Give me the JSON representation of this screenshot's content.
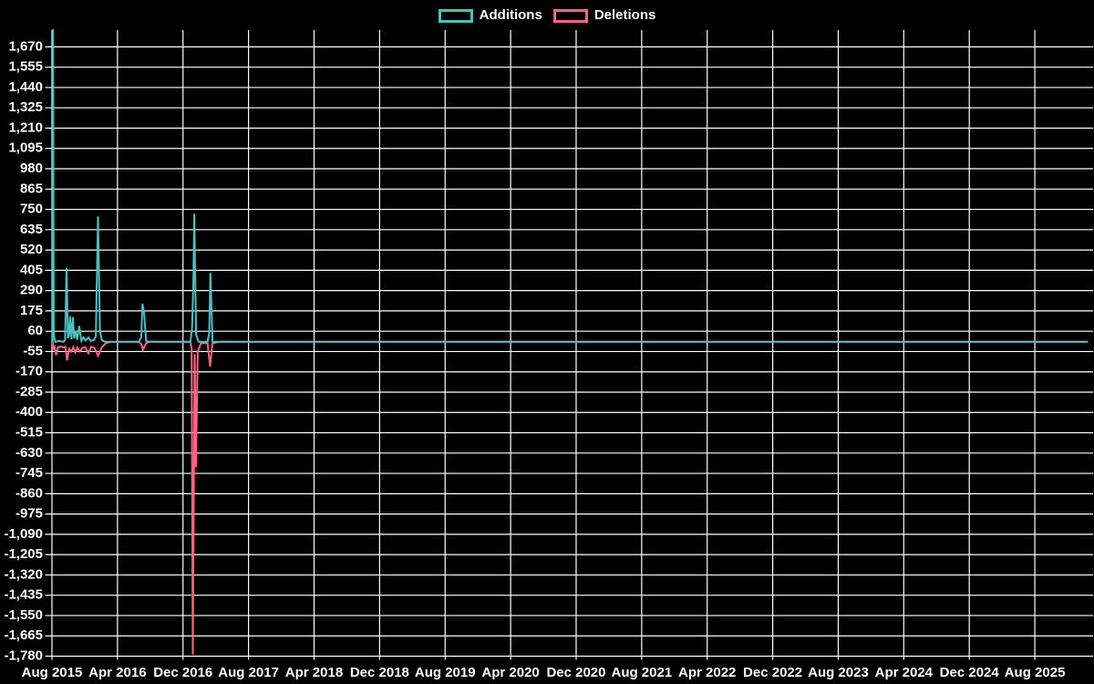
{
  "page": {
    "background": "#000000"
  },
  "legend": {
    "position": "top-center",
    "items": [
      {
        "label": "Additions",
        "color": "#4bc0c0"
      },
      {
        "label": "Deletions",
        "color": "#ff6384"
      }
    ]
  },
  "chart_data": {
    "type": "line",
    "title": "",
    "xlabel": "",
    "ylabel": "",
    "grid": true,
    "legend_position": "top",
    "colors": {
      "background": "#000000",
      "grid": "#ffffff",
      "text": "#ffffff",
      "additions": "#4bc0c0",
      "deletions": "#ff6384"
    },
    "x_axis": {
      "unit": "months since Aug 2015",
      "months_between_ticks": 8,
      "tick_labels": [
        "Aug 2015",
        "Apr 2016",
        "Dec 2016",
        "Aug 2017",
        "Apr 2018",
        "Dec 2018",
        "Aug 2019",
        "Apr 2020",
        "Dec 2020",
        "Aug 2021",
        "Apr 2022",
        "Dec 2022",
        "Aug 2023",
        "Apr 2024",
        "Dec 2024",
        "Aug 2025"
      ]
    },
    "y_axis": {
      "max": 1670,
      "min": -1780,
      "tick_step": 115,
      "tick_labels": [
        "1,670",
        "1,555",
        "1,440",
        "1,325",
        "1,210",
        "1,095",
        "980",
        "865",
        "750",
        "635",
        "520",
        "405",
        "290",
        "175",
        "60",
        "-55",
        "-170",
        "-285",
        "-400",
        "-515",
        "-630",
        "-745",
        "-860",
        "-975",
        "-1,090",
        "-1,205",
        "-1,320",
        "-1,435",
        "-1,550",
        "-1,665",
        "-1,780"
      ]
    },
    "series": [
      {
        "name": "Additions",
        "color": "#4bc0c0",
        "points": [
          [
            0,
            0
          ],
          [
            0.08,
            0
          ],
          [
            0.13,
            1770
          ],
          [
            0.22,
            40
          ],
          [
            0.4,
            0
          ],
          [
            0.9,
            5
          ],
          [
            1.4,
            0
          ],
          [
            1.6,
            10
          ],
          [
            1.78,
            420
          ],
          [
            1.95,
            20
          ],
          [
            2.08,
            35
          ],
          [
            2.2,
            145
          ],
          [
            2.38,
            15
          ],
          [
            2.55,
            140
          ],
          [
            2.72,
            20
          ],
          [
            2.9,
            60
          ],
          [
            3.08,
            12
          ],
          [
            3.33,
            90
          ],
          [
            3.6,
            5
          ],
          [
            3.85,
            25
          ],
          [
            4.1,
            8
          ],
          [
            4.45,
            25
          ],
          [
            4.75,
            5
          ],
          [
            5.1,
            10
          ],
          [
            5.35,
            30
          ],
          [
            5.62,
            710
          ],
          [
            5.85,
            60
          ],
          [
            6.1,
            8
          ],
          [
            6.5,
            0
          ],
          [
            8,
            0
          ],
          [
            10.6,
            0
          ],
          [
            10.9,
            25
          ],
          [
            11.05,
            215
          ],
          [
            11.25,
            160
          ],
          [
            11.5,
            5
          ],
          [
            11.9,
            0
          ],
          [
            16.9,
            0
          ],
          [
            17.1,
            70
          ],
          [
            17.25,
            310
          ],
          [
            17.37,
            725
          ],
          [
            17.6,
            40
          ],
          [
            17.9,
            0
          ],
          [
            19.0,
            0
          ],
          [
            19.2,
            50
          ],
          [
            19.35,
            390
          ],
          [
            19.6,
            0
          ],
          [
            20.5,
            0
          ],
          [
            126.5,
            0
          ]
        ]
      },
      {
        "name": "Deletions",
        "color": "#ff6384",
        "points": [
          [
            0,
            0
          ],
          [
            0.08,
            -5
          ],
          [
            0.15,
            -45
          ],
          [
            0.3,
            -20
          ],
          [
            0.5,
            -75
          ],
          [
            0.75,
            -30
          ],
          [
            1.1,
            -28
          ],
          [
            1.45,
            -32
          ],
          [
            1.65,
            -30
          ],
          [
            1.85,
            -105
          ],
          [
            2.1,
            -40
          ],
          [
            2.35,
            -55
          ],
          [
            2.6,
            -30
          ],
          [
            2.85,
            -60
          ],
          [
            3.1,
            -32
          ],
          [
            3.4,
            -55
          ],
          [
            3.7,
            -35
          ],
          [
            4.05,
            -30
          ],
          [
            4.45,
            -65
          ],
          [
            4.8,
            -28
          ],
          [
            5.2,
            -35
          ],
          [
            5.62,
            -80
          ],
          [
            6.1,
            -30
          ],
          [
            6.6,
            -8
          ],
          [
            7.2,
            0
          ],
          [
            10.6,
            0
          ],
          [
            10.9,
            -12
          ],
          [
            11.1,
            -45
          ],
          [
            11.5,
            -8
          ],
          [
            11.9,
            0
          ],
          [
            16.9,
            0
          ],
          [
            17.05,
            -35
          ],
          [
            17.2,
            -1770
          ],
          [
            17.42,
            -70
          ],
          [
            17.58,
            -710
          ],
          [
            17.8,
            -55
          ],
          [
            18.2,
            -8
          ],
          [
            19.0,
            -8
          ],
          [
            19.3,
            -140
          ],
          [
            19.6,
            -8
          ],
          [
            20.5,
            0
          ],
          [
            126.5,
            0
          ]
        ]
      }
    ]
  }
}
